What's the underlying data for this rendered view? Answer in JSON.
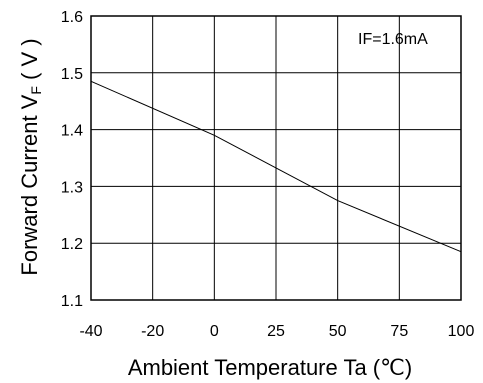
{
  "chart_data": {
    "type": "line",
    "xlabel": "Ambient Temperature Ta (℃)",
    "ylabel_main": "Forward Current V",
    "ylabel_sub": "F",
    "ylabel_unit": " ( V )",
    "annotation": "IF=1.6mA",
    "xticks": [
      -40,
      -20,
      0,
      25,
      50,
      75,
      100
    ],
    "yticks": [
      "1.1",
      "1.2",
      "1.3",
      "1.4",
      "1.5",
      "1.6"
    ],
    "xlim": [
      -40,
      100
    ],
    "ylim": [
      1.1,
      1.6
    ],
    "grid": true,
    "series": [
      {
        "x": [
          -40,
          0,
          50,
          100
        ],
        "y": [
          1.485,
          1.39,
          1.275,
          1.185
        ]
      }
    ],
    "line_color": "#000000"
  }
}
